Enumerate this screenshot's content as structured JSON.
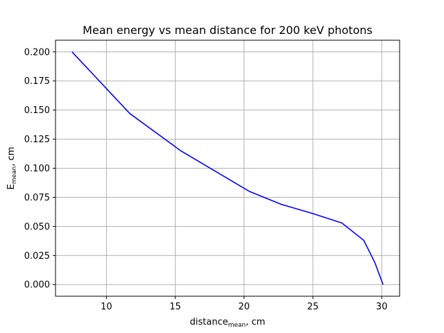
{
  "chart_data": {
    "type": "line",
    "title": "Mean energy vs mean distance for 200 keV photons",
    "xlabel": {
      "base": "distance",
      "sub": "mean",
      "suffix": ", cm"
    },
    "ylabel": {
      "base": "E",
      "sub": "mean",
      "suffix": ", cm"
    },
    "xlim": [
      6.3,
      31.3
    ],
    "ylim": [
      -0.01,
      0.21
    ],
    "xticks": [
      10,
      15,
      20,
      25,
      30
    ],
    "yticks": [
      0.0,
      0.025,
      0.05,
      0.075,
      0.1,
      0.125,
      0.15,
      0.175,
      0.2
    ],
    "xtick_labels": [
      "10",
      "15",
      "20",
      "25",
      "30"
    ],
    "ytick_labels": [
      "0.000",
      "0.025",
      "0.050",
      "0.075",
      "0.100",
      "0.125",
      "0.150",
      "0.175",
      "0.200"
    ],
    "grid": true,
    "series": [
      {
        "color": "#0000ff",
        "x": [
          7.5,
          11.7,
          15.4,
          20.4,
          22.7,
          25.0,
          27.1,
          28.7,
          29.5,
          30.1
        ],
        "y": [
          0.2,
          0.147,
          0.115,
          0.08,
          0.069,
          0.061,
          0.053,
          0.038,
          0.019,
          0.0
        ]
      }
    ]
  }
}
